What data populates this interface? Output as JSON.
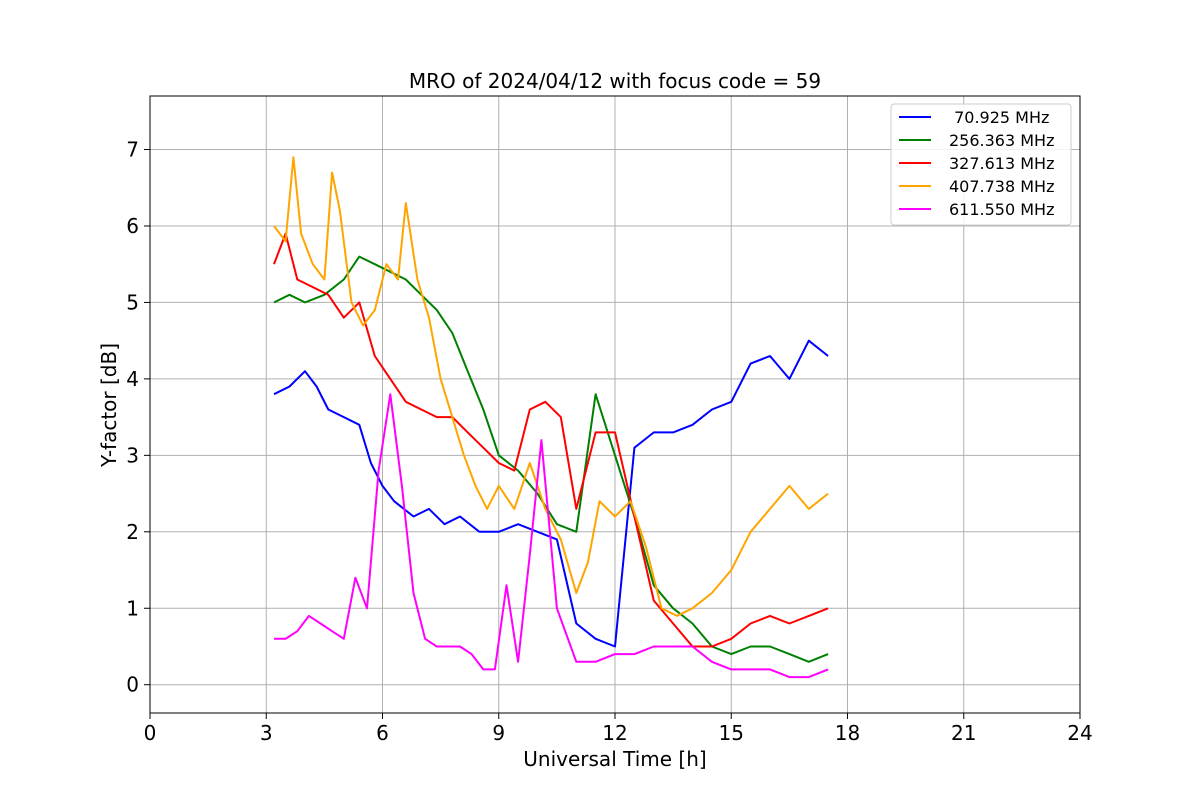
{
  "chart_data": {
    "type": "line",
    "title": "MRO of 2024/04/12 with focus code = 59",
    "xlabel": "Universal Time [h]",
    "ylabel": "Y-factor [dB]",
    "xlim": [
      0,
      24
    ],
    "ylim": [
      -0.37,
      7.7
    ],
    "xticks": [
      0,
      3,
      6,
      9,
      12,
      15,
      18,
      21,
      24
    ],
    "yticks": [
      0,
      1,
      2,
      3,
      4,
      5,
      6,
      7
    ],
    "grid": true,
    "legend_position": "top-right",
    "series": [
      {
        "name": " 70.925 MHz",
        "color": "#0000ff",
        "x": [
          3.2,
          3.6,
          4.0,
          4.3,
          4.6,
          5.0,
          5.4,
          5.7,
          6.0,
          6.3,
          6.8,
          7.2,
          7.6,
          8.0,
          8.5,
          9.0,
          9.5,
          10.0,
          10.5,
          11.0,
          11.5,
          12.0,
          12.5,
          13.0,
          13.5,
          14.0,
          14.5,
          15.0,
          15.5,
          16.0,
          16.5,
          17.0,
          17.5
        ],
        "y": [
          3.8,
          3.9,
          4.1,
          3.9,
          3.6,
          3.5,
          3.4,
          2.9,
          2.6,
          2.4,
          2.2,
          2.3,
          2.1,
          2.2,
          2.0,
          2.0,
          2.1,
          2.0,
          1.9,
          0.8,
          0.6,
          0.5,
          3.1,
          3.3,
          3.3,
          3.4,
          3.6,
          3.7,
          4.2,
          4.3,
          4.0,
          4.5,
          4.3
        ]
      },
      {
        "name": "256.363 MHz",
        "color": "#008000",
        "x": [
          3.2,
          3.6,
          4.0,
          4.5,
          5.0,
          5.4,
          5.8,
          6.2,
          6.6,
          7.0,
          7.4,
          7.8,
          8.2,
          8.6,
          9.0,
          9.5,
          10.0,
          10.5,
          11.0,
          11.5,
          12.0,
          12.5,
          13.0,
          13.5,
          14.0,
          14.5,
          15.0,
          15.5,
          16.0,
          16.5,
          17.0,
          17.5
        ],
        "y": [
          5.0,
          5.1,
          5.0,
          5.1,
          5.3,
          5.6,
          5.5,
          5.4,
          5.3,
          5.1,
          4.9,
          4.6,
          4.1,
          3.6,
          3.0,
          2.8,
          2.5,
          2.1,
          2.0,
          3.8,
          3.0,
          2.2,
          1.3,
          1.0,
          0.8,
          0.5,
          0.4,
          0.5,
          0.5,
          0.4,
          0.3,
          0.4
        ]
      },
      {
        "name": "327.613 MHz",
        "color": "#ff0000",
        "x": [
          3.2,
          3.5,
          3.8,
          4.2,
          4.6,
          5.0,
          5.4,
          5.8,
          6.2,
          6.6,
          7.0,
          7.4,
          7.8,
          8.2,
          8.6,
          9.0,
          9.4,
          9.8,
          10.2,
          10.6,
          11.0,
          11.5,
          12.0,
          12.5,
          13.0,
          13.5,
          14.0,
          14.5,
          15.0,
          15.5,
          16.0,
          16.5,
          17.0,
          17.5
        ],
        "y": [
          5.5,
          5.9,
          5.3,
          5.2,
          5.1,
          4.8,
          5.0,
          4.3,
          4.0,
          3.7,
          3.6,
          3.5,
          3.5,
          3.3,
          3.1,
          2.9,
          2.8,
          3.6,
          3.7,
          3.5,
          2.3,
          3.3,
          3.3,
          2.2,
          1.1,
          0.8,
          0.5,
          0.5,
          0.6,
          0.8,
          0.9,
          0.8,
          0.9,
          1.0
        ]
      },
      {
        "name": "407.738 MHz",
        "color": "#ffa500",
        "x": [
          3.2,
          3.5,
          3.7,
          3.9,
          4.2,
          4.5,
          4.7,
          4.9,
          5.2,
          5.5,
          5.8,
          6.1,
          6.4,
          6.6,
          6.9,
          7.2,
          7.5,
          7.8,
          8.1,
          8.4,
          8.7,
          9.0,
          9.4,
          9.8,
          10.2,
          10.6,
          11.0,
          11.3,
          11.6,
          12.0,
          12.4,
          12.8,
          13.2,
          13.6,
          14.0,
          14.5,
          15.0,
          15.5,
          16.0,
          16.5,
          17.0,
          17.5
        ],
        "y": [
          6.0,
          5.8,
          6.9,
          5.9,
          5.5,
          5.3,
          6.7,
          6.2,
          5.0,
          4.7,
          4.9,
          5.5,
          5.3,
          6.3,
          5.3,
          4.8,
          4.0,
          3.5,
          3.0,
          2.6,
          2.3,
          2.6,
          2.3,
          2.9,
          2.3,
          1.9,
          1.2,
          1.6,
          2.4,
          2.2,
          2.4,
          1.8,
          1.0,
          0.9,
          1.0,
          1.2,
          1.5,
          2.0,
          2.3,
          2.6,
          2.3,
          2.5
        ]
      },
      {
        "name": "611.550 MHz",
        "color": "#ff00ff",
        "x": [
          3.2,
          3.5,
          3.8,
          4.1,
          4.4,
          4.7,
          5.0,
          5.3,
          5.6,
          5.9,
          6.2,
          6.5,
          6.8,
          7.1,
          7.4,
          7.7,
          8.0,
          8.3,
          8.6,
          8.9,
          9.2,
          9.5,
          9.8,
          10.1,
          10.5,
          11.0,
          11.5,
          12.0,
          12.5,
          13.0,
          13.5,
          14.0,
          14.5,
          15.0,
          15.5,
          16.0,
          16.5,
          17.0,
          17.5
        ],
        "y": [
          0.6,
          0.6,
          0.7,
          0.9,
          0.8,
          0.7,
          0.6,
          1.4,
          1.0,
          2.8,
          3.8,
          2.6,
          1.2,
          0.6,
          0.5,
          0.5,
          0.5,
          0.4,
          0.2,
          0.2,
          1.3,
          0.3,
          1.7,
          3.2,
          1.0,
          0.3,
          0.3,
          0.4,
          0.4,
          0.5,
          0.5,
          0.5,
          0.3,
          0.2,
          0.2,
          0.2,
          0.1,
          0.1,
          0.2
        ]
      }
    ]
  }
}
